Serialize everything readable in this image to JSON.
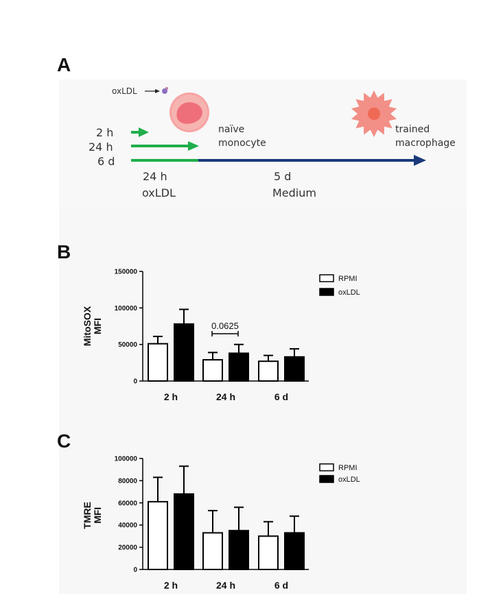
{
  "panels": {
    "a": "A",
    "b": "B",
    "c": "C"
  },
  "schematic": {
    "oxldl_label": "oxLDL",
    "durations": [
      "2 h",
      "24 h",
      "6 d"
    ],
    "cell_start": "naïve monocyte",
    "cell_start_lines": [
      "naïve",
      "monocyte"
    ],
    "cell_end": "trained macrophage",
    "cell_end_lines": [
      "trained",
      "macrophage"
    ],
    "phase1_lines": [
      "24 h",
      "oxLDL"
    ],
    "phase2_lines": [
      "5 d",
      "Medium"
    ],
    "colors": {
      "green": "#1fae4b",
      "navy": "#1a3a7a",
      "cell": "#f38b8b"
    }
  },
  "chart_data": [
    {
      "type": "bar",
      "panel": "B",
      "categories": [
        "2 h",
        "24 h",
        "6 d"
      ],
      "ylabel_lines": [
        "MitoSOX",
        "MFI"
      ],
      "ylim": [
        0,
        150000
      ],
      "yticks": [
        0,
        50000,
        100000,
        150000
      ],
      "series": [
        {
          "name": "RPMI",
          "values": [
            51000,
            29000,
            27000
          ],
          "errors": [
            10000,
            10000,
            8000
          ],
          "fill": "#ffffff"
        },
        {
          "name": "oxLDL",
          "values": [
            78000,
            38000,
            33000
          ],
          "errors": [
            20000,
            12000,
            11000
          ],
          "fill": "#000000"
        }
      ],
      "annotation": {
        "text": "0.0625",
        "category": "24 h"
      },
      "legend_position": "top-right"
    },
    {
      "type": "bar",
      "panel": "C",
      "categories": [
        "2 h",
        "24 h",
        "6 d"
      ],
      "ylabel_lines": [
        "TMRE",
        "MFI"
      ],
      "ylim": [
        0,
        100000
      ],
      "yticks": [
        0,
        20000,
        40000,
        60000,
        80000,
        100000
      ],
      "series": [
        {
          "name": "RPMI",
          "values": [
            61000,
            33000,
            30000
          ],
          "errors": [
            22000,
            20000,
            13000
          ],
          "fill": "#ffffff"
        },
        {
          "name": "oxLDL",
          "values": [
            68000,
            35000,
            33000
          ],
          "errors": [
            25000,
            21000,
            15000
          ],
          "fill": "#000000"
        }
      ],
      "legend_position": "top-right"
    }
  ]
}
